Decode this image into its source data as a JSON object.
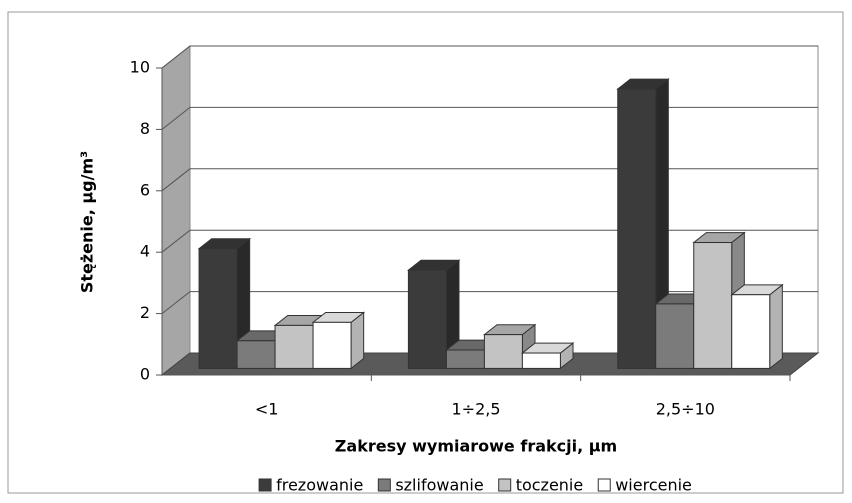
{
  "chart_data": {
    "type": "bar3d",
    "xlabel": "Zakresy wymiarowe frakcji, µm",
    "ylabel": "Stężenie, µg/m³",
    "categories": [
      "<1",
      "1÷2,5",
      "2,5÷10"
    ],
    "series": [
      {
        "name": "frezowanie",
        "color": "#3b3b3b",
        "values": [
          3.9,
          3.2,
          9.1
        ]
      },
      {
        "name": "szlifowanie",
        "color": "#7b7b7b",
        "values": [
          0.9,
          0.6,
          2.1
        ]
      },
      {
        "name": "toczenie",
        "color": "#c3c3c3",
        "values": [
          1.4,
          1.1,
          4.1
        ]
      },
      {
        "name": "wiercenie",
        "color": "#ffffff",
        "values": [
          1.5,
          0.5,
          2.4
        ]
      }
    ],
    "ylim": [
      0,
      10
    ],
    "yticks": [
      0,
      2,
      4,
      6,
      8,
      10
    ],
    "grid": true,
    "legend": "bottom"
  }
}
